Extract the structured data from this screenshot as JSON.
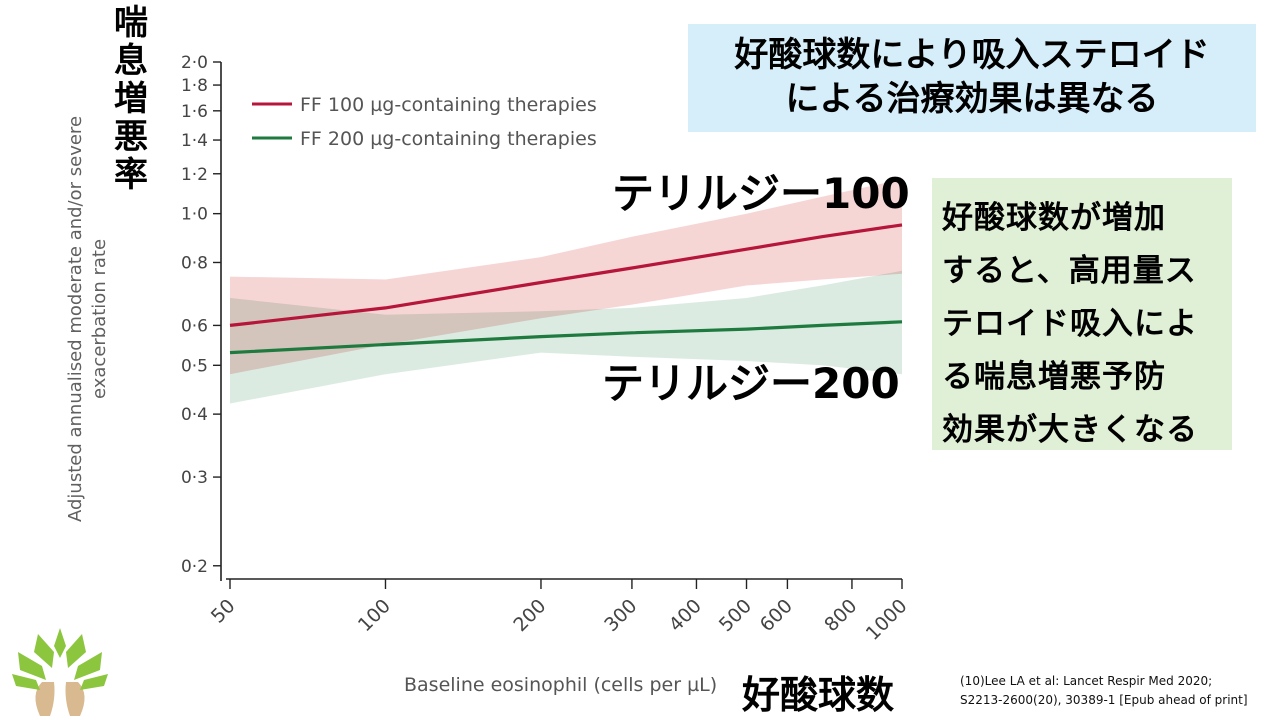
{
  "chart_data": {
    "type": "line",
    "title": "",
    "xlabel": "Baseline eosinophil (cells per µL)",
    "ylabel": "Adjusted annualised moderate and/or severe exacerbation rate",
    "xscale": "log",
    "yscale": "log",
    "xlim": [
      50,
      1000
    ],
    "ylim": [
      0.19,
      2.0
    ],
    "x_ticks": [
      50,
      100,
      200,
      300,
      400,
      500,
      600,
      800,
      1000
    ],
    "y_ticks": [
      {
        "v": 0.2,
        "label": "0·2"
      },
      {
        "v": 0.3,
        "label": "0·3"
      },
      {
        "v": 0.4,
        "label": "0·4"
      },
      {
        "v": 0.5,
        "label": "0·5"
      },
      {
        "v": 0.6,
        "label": "0·6"
      },
      {
        "v": 0.8,
        "label": "0·8"
      },
      {
        "v": 1.0,
        "label": "1·0"
      },
      {
        "v": 1.2,
        "label": "1·2"
      },
      {
        "v": 1.4,
        "label": "1·4"
      },
      {
        "v": 1.6,
        "label": "1·6"
      },
      {
        "v": 1.8,
        "label": "1·8"
      },
      {
        "v": 2.0,
        "label": "2·0"
      }
    ],
    "legend_position": "top-left",
    "series": [
      {
        "name": "FF 100 µg-containing therapies",
        "color": "#b5163a",
        "band_color": "#f3c7c7",
        "x": [
          50,
          100,
          200,
          300,
          500,
          700,
          1000
        ],
        "y": [
          0.6,
          0.65,
          0.73,
          0.78,
          0.85,
          0.9,
          0.95
        ],
        "ci_low": [
          0.48,
          0.55,
          0.62,
          0.66,
          0.72,
          0.74,
          0.76
        ],
        "ci_high": [
          0.75,
          0.74,
          0.82,
          0.9,
          1.0,
          1.08,
          1.17
        ]
      },
      {
        "name": "FF 200 µg-containing therapies",
        "color": "#1e7a3e",
        "band_color": "#cfe4d7",
        "x": [
          50,
          100,
          200,
          300,
          500,
          700,
          1000
        ],
        "y": [
          0.53,
          0.55,
          0.57,
          0.58,
          0.59,
          0.6,
          0.61
        ],
        "ci_low": [
          0.42,
          0.48,
          0.53,
          0.52,
          0.51,
          0.5,
          0.48
        ],
        "ci_high": [
          0.68,
          0.63,
          0.64,
          0.65,
          0.68,
          0.72,
          0.77
        ]
      }
    ]
  },
  "ja": {
    "ylabel_chars": [
      "喘",
      "息",
      "増",
      "悪",
      "率"
    ],
    "title_line1": "好酸球数により吸入ステロイド",
    "title_line2": "による治療効果は異なる",
    "label_100": "テリルジー100",
    "label_200": "テリルジー200",
    "note_lines": [
      "好酸球数が増加",
      "すると、高用量ス",
      "テロイド吸入によ",
      "る喘息増悪予防",
      "効果が大きくなる"
    ],
    "xlabel": "好酸球数"
  },
  "en": {
    "ylabel_line1": "Adjusted annualised moderate and/or severe",
    "ylabel_line2": "exacerbation rate",
    "xlabel": "Baseline eosinophil (cells per µL)"
  },
  "citation": {
    "line1": "(10)Lee LA et al: Lancet Respir Med 2020;",
    "line2": "S2213-2600(20), 30389-1 [Epub ahead of print]"
  },
  "logo_icon": "tree-logo-icon",
  "colors": {
    "title_bg": "#d6eefa",
    "note_bg": "#e0f0d6"
  }
}
